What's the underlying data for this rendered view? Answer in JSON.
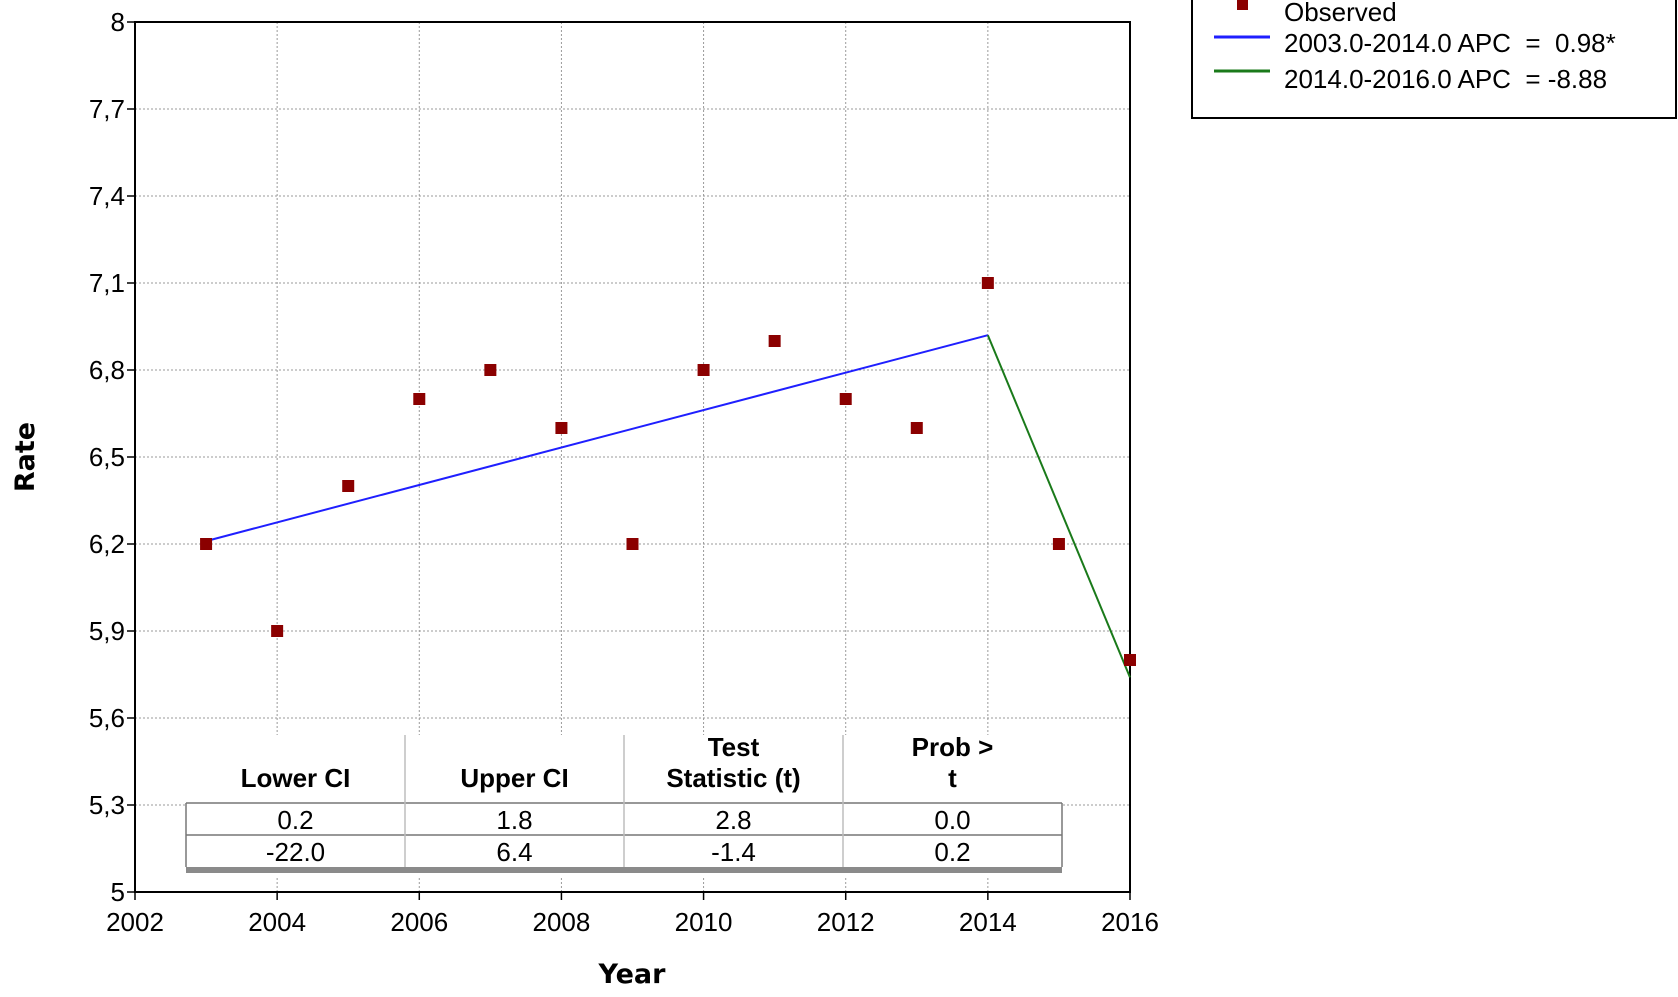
{
  "chart_data": {
    "type": "scatter",
    "xlabel": "Year",
    "ylabel": "Rate",
    "xlim": [
      2002,
      2016
    ],
    "ylim": [
      5,
      8
    ],
    "x_ticks": [
      "2002",
      "2004",
      "2006",
      "2008",
      "2010",
      "2012",
      "2014",
      "2016"
    ],
    "y_ticks": [
      "5",
      "5,3",
      "5,6",
      "5,9",
      "6,2",
      "6,5",
      "6,8",
      "7,1",
      "7,4",
      "7,7",
      "8"
    ],
    "grid": true,
    "legend_position": "top-right, outside plot",
    "observed": {
      "name": "Observed",
      "color": "#8b0000",
      "x": [
        2003,
        2004,
        2005,
        2006,
        2007,
        2008,
        2009,
        2010,
        2011,
        2012,
        2013,
        2014,
        2015,
        2016
      ],
      "y": [
        6.2,
        5.9,
        6.4,
        6.7,
        6.8,
        6.6,
        6.2,
        6.8,
        6.9,
        6.7,
        6.6,
        7.1,
        6.2,
        5.8
      ]
    },
    "segments": [
      {
        "name": "2003.0-2014.0 APC  =  0.98*",
        "color": "#1f1fff",
        "x": [
          2003,
          2014
        ],
        "y": [
          6.21,
          6.92
        ]
      },
      {
        "name": "2014.0-2016.0 APC  = -8.88",
        "color": "#1a7a1a",
        "x": [
          2014,
          2016
        ],
        "y": [
          6.92,
          5.74
        ]
      }
    ],
    "table": {
      "columns": [
        "Lower CI",
        "Upper CI",
        "Test|Statistic (t)",
        "Prob > |t|"
      ],
      "rows": [
        [
          "0.2",
          "1.8",
          "2.8",
          "0.0"
        ],
        [
          "-22.0",
          "6.4",
          "-1.4",
          "0.2"
        ]
      ]
    }
  }
}
